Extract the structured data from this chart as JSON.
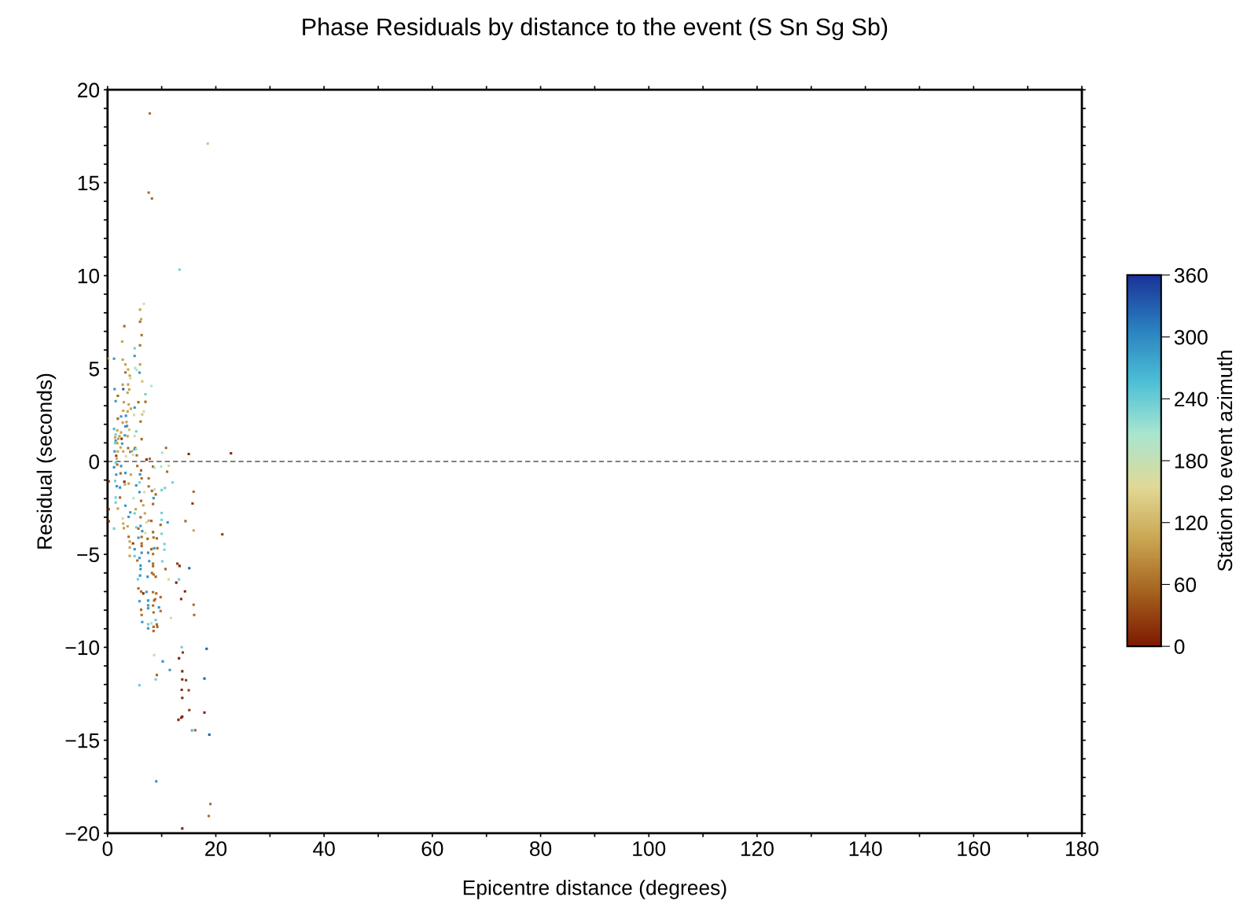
{
  "chart_data": {
    "type": "scatter",
    "title": "Phase Residuals by distance to the event (S Sn Sg Sb)",
    "xlabel": "Epicentre distance (degrees)",
    "ylabel": "Residual (seconds)",
    "clabel": "Station to event azimuth",
    "marker": "square",
    "grid": false,
    "legend": false,
    "xlim": [
      0,
      180
    ],
    "xticks": [
      0,
      {
        "value": 10,
        "label": null
      },
      20,
      {
        "value": 30,
        "label": null
      },
      40,
      {
        "value": 50,
        "label": null
      },
      60,
      {
        "value": 70,
        "label": null
      },
      80,
      {
        "value": 90,
        "label": null
      },
      100,
      {
        "value": 110,
        "label": null
      },
      120,
      {
        "value": 130,
        "label": null
      },
      140,
      {
        "value": 150,
        "label": null
      },
      160,
      {
        "value": 170,
        "label": null
      },
      180
    ],
    "ylim": [
      -20,
      20
    ],
    "yticks": [
      {
        "value": -20,
        "label": "−20"
      },
      {
        "value": -19,
        "label": null
      },
      {
        "value": -18,
        "label": null
      },
      {
        "value": -17,
        "label": null
      },
      {
        "value": -16,
        "label": null
      },
      {
        "value": -15,
        "label": "−15"
      },
      {
        "value": -14,
        "label": null
      },
      {
        "value": -13,
        "label": null
      },
      {
        "value": -12,
        "label": null
      },
      {
        "value": -11,
        "label": null
      },
      {
        "value": -10,
        "label": "−10"
      },
      {
        "value": -9,
        "label": null
      },
      {
        "value": -8,
        "label": null
      },
      {
        "value": -7,
        "label": null
      },
      {
        "value": -6,
        "label": null
      },
      {
        "value": -5,
        "label": "−5"
      },
      {
        "value": -4,
        "label": null
      },
      {
        "value": -3,
        "label": null
      },
      {
        "value": -2,
        "label": null
      },
      {
        "value": -1,
        "label": null
      },
      0,
      {
        "value": 1,
        "label": null
      },
      {
        "value": 2,
        "label": null
      },
      {
        "value": 3,
        "label": null
      },
      {
        "value": 4,
        "label": null
      },
      5,
      {
        "value": 6,
        "label": null
      },
      {
        "value": 7,
        "label": null
      },
      {
        "value": 8,
        "label": null
      },
      {
        "value": 9,
        "label": null
      },
      10,
      {
        "value": 11,
        "label": null
      },
      {
        "value": 12,
        "label": null
      },
      {
        "value": 13,
        "label": null
      },
      {
        "value": 14,
        "label": null
      },
      15,
      {
        "value": 16,
        "label": null
      },
      {
        "value": 17,
        "label": null
      },
      {
        "value": 18,
        "label": null
      },
      {
        "value": 19,
        "label": null
      },
      20
    ],
    "clim": [
      0,
      360
    ],
    "cticks": [
      0,
      60,
      120,
      180,
      240,
      300,
      360
    ],
    "ref_lines": [
      {
        "axis": "y",
        "value": 0,
        "color": "#7f7f7f",
        "line_style": "dashed"
      }
    ],
    "x": [
      7.8,
      18.5,
      7.6,
      8.2,
      13.3,
      6.7,
      6.0,
      6.2,
      6.0,
      3.1,
      6.3,
      2.7,
      6.0,
      5.0,
      5.0,
      1.2,
      0.1,
      2.8,
      3.3,
      6.0,
      5.1,
      5.4,
      5.9,
      3.3,
      3.8,
      4.1,
      4.2,
      6.4,
      8.1,
      2.8,
      3.8,
      1.3,
      2.9,
      4.0,
      3.7,
      7.0,
      1.9,
      1.5,
      5.7,
      7.0,
      3.0,
      3.9,
      4.3,
      5.0,
      6.7,
      6.4,
      4.9,
      6.1,
      2.9,
      3.7,
      2.5,
      3.4,
      1.9,
      2.8,
      3.5,
      3.3,
      3.6,
      1.2,
      1.8,
      4.0,
      1.5,
      2.5,
      3.2,
      5.0,
      3.7,
      5.3,
      1.4,
      2.2,
      2.6,
      2.0,
      6.3,
      1.5,
      2.7,
      1.8,
      1.4,
      3.8,
      5.1,
      2.4,
      5.0,
      5.3,
      10.8,
      1.3,
      1.9,
      2.9,
      4.2,
      4.5,
      5.4,
      10.1,
      15.0,
      22.8,
      4.7,
      1.6,
      3.4,
      7.2,
      7.8,
      1.7,
      1.5,
      1.2,
      1.8,
      2.5,
      1.6,
      2.4,
      3.3,
      4.3,
      5.5,
      8.4,
      8.7,
      9.9,
      11.3,
      11.0,
      6.2,
      6.0,
      6.3,
      7.6,
      0.2,
      1.4,
      3.1,
      3.9,
      5.3,
      5.9,
      12.0,
      7.6,
      8.2,
      8.7,
      10.6,
      10.0,
      1.7,
      2.3,
      3.2,
      5.9,
      6.8,
      15.9,
      1.5,
      2.3,
      8.5,
      8.9,
      4.8,
      6.2,
      6.6,
      8.4,
      15.7,
      1.5,
      3.3,
      4.2,
      5.2,
      0.2,
      1.9,
      5.0,
      6.9,
      6.1,
      10.0,
      3.9,
      2.8,
      0.2,
      1.2,
      10.0,
      11.1,
      14.4,
      9.8,
      7.6,
      8.1,
      7.2,
      2.9,
      3.7,
      5.3,
      5.7,
      6.1,
      3.0,
      15.9,
      21.2,
      3.9,
      6.4,
      7.0,
      6.3,
      5.7,
      8.4,
      7.4,
      9.1,
      8.5,
      10.0,
      4.1,
      4.7,
      6.3,
      10.5,
      4.1,
      5.0,
      6.3,
      8.1,
      9.2,
      8.6,
      10.5,
      7.5,
      6.3,
      8.4,
      4.1,
      5.0,
      5.9,
      5.5,
      7.7,
      8.4,
      10.1,
      6.1,
      6.1,
      8.4,
      10.7,
      12.9,
      13.3,
      15.1,
      8.2,
      8.5,
      8.9,
      7.4,
      6.0,
      5.6,
      11.3,
      13.2,
      12.7,
      6.2,
      5.7,
      7.2,
      8.4,
      9.0,
      9.8,
      14.3,
      6.6,
      13.6,
      5.9,
      7.5,
      8.6,
      8.8,
      7.5,
      8.4,
      9.5,
      7.5,
      15.9,
      9.8,
      6.2,
      8.5,
      16.0,
      6.3,
      6.4,
      8.9,
      8.1,
      7.5,
      9.1,
      7.5,
      8.5,
      8.5,
      9.2,
      11.7,
      13.7,
      13.9,
      18.3,
      13.2,
      8.6,
      10.2,
      11.5,
      9.1,
      8.9,
      13.8,
      13.8,
      14.5,
      17.9,
      5.9,
      13.7,
      15.0,
      13.8,
      15.1,
      17.9,
      13.1,
      13.6,
      13.8,
      15.6,
      16.2,
      18.8,
      9.0,
      19.0,
      18.7,
      13.8
    ],
    "values": [
      18.73,
      17.1,
      14.47,
      14.15,
      10.32,
      8.48,
      8.17,
      7.66,
      7.52,
      7.28,
      6.8,
      6.45,
      6.25,
      6.09,
      5.68,
      5.53,
      5.54,
      5.48,
      5.22,
      5.22,
      5.03,
      4.92,
      4.78,
      4.79,
      4.95,
      4.62,
      4.48,
      4.31,
      4.06,
      4.13,
      4.14,
      3.89,
      3.89,
      3.87,
      3.7,
      3.62,
      3.53,
      3.25,
      3.19,
      3.21,
      3.19,
      3.07,
      2.84,
      2.9,
      2.69,
      2.53,
      2.5,
      2.15,
      2.73,
      2.69,
      2.42,
      2.46,
      2.3,
      2.09,
      2.12,
      1.88,
      1.91,
      1.75,
      1.67,
      1.71,
      1.45,
      1.56,
      1.41,
      1.37,
      1.36,
      1.62,
      1.3,
      1.36,
      1.22,
      1.22,
      1.2,
      1.13,
      0.96,
      0.99,
      0.99,
      0.72,
      0.73,
      0.75,
      0.66,
      0.66,
      0.73,
      0.54,
      0.54,
      0.54,
      0.52,
      0.55,
      0.33,
      0.47,
      0.4,
      0.44,
      0.35,
      0.31,
      0.28,
      0.1,
      0.15,
      0.16,
      -0.07,
      -0.31,
      -0.17,
      -0.25,
      -0.71,
      -0.64,
      -0.62,
      -0.71,
      -0.24,
      -0.28,
      -0.34,
      -0.27,
      -0.23,
      -0.55,
      -0.48,
      -0.69,
      -0.91,
      -0.91,
      -1.07,
      -1.05,
      -1.09,
      -1.19,
      -1.29,
      -1.13,
      -1.13,
      -1.34,
      -1.58,
      -1.5,
      -1.43,
      -1.54,
      -1.33,
      -1.4,
      -1.23,
      -1.65,
      -1.65,
      -1.63,
      -1.94,
      -1.94,
      -1.97,
      -1.77,
      -1.98,
      -2.12,
      -2.36,
      -2.29,
      -2.26,
      -2.21,
      -2.38,
      -2.74,
      -2.57,
      -2.57,
      -2.53,
      -2.79,
      -2.79,
      -3.0,
      -2.77,
      -2.98,
      -3.07,
      -3.22,
      -3.61,
      -3.14,
      -3.28,
      -3.21,
      -3.41,
      -3.18,
      -3.2,
      -3.28,
      -3.34,
      -3.49,
      -3.54,
      -3.61,
      -3.47,
      -3.59,
      -3.71,
      -3.92,
      -4.05,
      -3.75,
      -3.85,
      -4.06,
      -4.1,
      -3.8,
      -4.16,
      -4.14,
      -4.09,
      -3.89,
      -4.31,
      -4.41,
      -4.41,
      -4.44,
      -4.63,
      -4.72,
      -4.55,
      -4.72,
      -4.67,
      -4.67,
      -4.75,
      -4.91,
      -4.91,
      -4.98,
      -5.08,
      -5.09,
      -5.19,
      -5.33,
      -5.36,
      -5.5,
      -5.37,
      -5.6,
      -5.79,
      -5.63,
      -5.79,
      -5.5,
      -5.62,
      -5.74,
      -6.0,
      -6.08,
      -6.2,
      -6.2,
      -6.14,
      -6.34,
      -6.35,
      -6.35,
      -6.52,
      -7.0,
      -6.83,
      -7.02,
      -7.03,
      -7.1,
      -7.3,
      -6.99,
      -7.1,
      -7.4,
      -7.52,
      -7.48,
      -7.48,
      -7.41,
      -7.74,
      -7.75,
      -7.85,
      -7.9,
      -7.71,
      -8.05,
      -7.98,
      -8.12,
      -8.26,
      -8.26,
      -8.64,
      -8.53,
      -8.71,
      -8.76,
      -8.77,
      -8.98,
      -8.9,
      -9.12,
      -8.9,
      -8.42,
      -9.99,
      -10.28,
      -10.08,
      -10.59,
      -10.42,
      -10.76,
      -11.22,
      -11.49,
      -11.73,
      -11.29,
      -11.73,
      -11.77,
      -11.68,
      -12.04,
      -12.29,
      -12.31,
      -12.72,
      -13.38,
      -13.51,
      -13.9,
      -13.79,
      -13.73,
      -14.47,
      -14.46,
      -14.7,
      -17.21,
      -18.43,
      -19.08,
      -19.75
    ],
    "cvalues": [
      60,
      130,
      60,
      60,
      235,
      165,
      100,
      100,
      60,
      60,
      60,
      100,
      60,
      235,
      290,
      290,
      100,
      100,
      100,
      100,
      200,
      200,
      290,
      60,
      100,
      100,
      165,
      130,
      200,
      100,
      100,
      290,
      330,
      100,
      100,
      235,
      60,
      290,
      60,
      60,
      100,
      100,
      100,
      290,
      165,
      130,
      165,
      60,
      100,
      100,
      290,
      290,
      60,
      100,
      100,
      290,
      290,
      260,
      100,
      130,
      235,
      100,
      290,
      165,
      100,
      235,
      100,
      100,
      25,
      100,
      60,
      290,
      290,
      100,
      235,
      60,
      60,
      100,
      290,
      200,
      60,
      290,
      100,
      100,
      290,
      100,
      60,
      200,
      10,
      10,
      165,
      25,
      165,
      10,
      60,
      100,
      235,
      290,
      60,
      290,
      290,
      60,
      290,
      100,
      60,
      60,
      200,
      200,
      165,
      60,
      60,
      290,
      60,
      60,
      10,
      235,
      10,
      100,
      290,
      235,
      235,
      60,
      60,
      200,
      235,
      235,
      290,
      290,
      100,
      290,
      165,
      60,
      235,
      60,
      290,
      60,
      200,
      60,
      100,
      60,
      25,
      235,
      290,
      290,
      100,
      10,
      100,
      235,
      100,
      60,
      235,
      290,
      165,
      10,
      235,
      235,
      290,
      60,
      60,
      100,
      60,
      165,
      100,
      100,
      235,
      60,
      290,
      100,
      100,
      25,
      60,
      290,
      165,
      60,
      290,
      60,
      60,
      60,
      60,
      235,
      100,
      25,
      60,
      235,
      100,
      290,
      60,
      60,
      60,
      290,
      235,
      290,
      290,
      60,
      100,
      235,
      290,
      60,
      290,
      60,
      235,
      290,
      290,
      60,
      60,
      25,
      10,
      330,
      60,
      60,
      60,
      290,
      290,
      235,
      165,
      235,
      10,
      60,
      60,
      290,
      60,
      60,
      60,
      10,
      10,
      10,
      290,
      290,
      60,
      60,
      290,
      60,
      290,
      290,
      60,
      60,
      60,
      60,
      60,
      60,
      290,
      235,
      200,
      235,
      60,
      290,
      60,
      60,
      60,
      165,
      235,
      25,
      330,
      10,
      165,
      290,
      290,
      60,
      235,
      10,
      10,
      25,
      330,
      235,
      10,
      25,
      10,
      25,
      10,
      10,
      10,
      10,
      260,
      60,
      330,
      290,
      60,
      60,
      10
    ]
  }
}
